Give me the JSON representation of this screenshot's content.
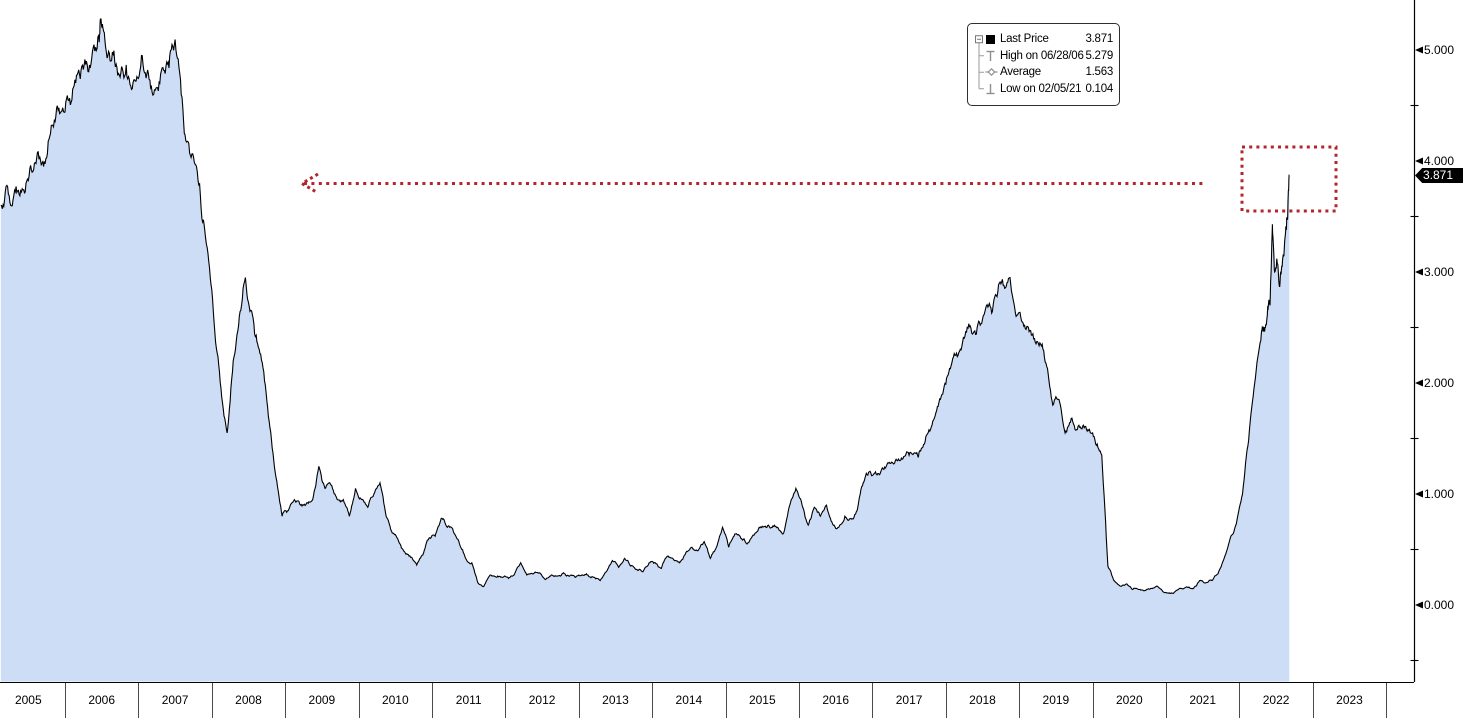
{
  "window": {
    "description": "Bloomberg-style security price area chart, 2005-2023"
  },
  "colors": {
    "area_fill": "#cdddf5",
    "line": "#000000",
    "annotation_red": "#b2262b",
    "axis_text": "#000000",
    "legend_marker_gray": "#8f8f8f",
    "price_tag_bg": "#000000",
    "price_tag_text": "#ffffff"
  },
  "legend": {
    "rows": [
      {
        "id": "last",
        "label": "Last Price",
        "value": "3.871"
      },
      {
        "id": "high",
        "label": "High on 06/28/06",
        "value": "5.279"
      },
      {
        "id": "average",
        "label": "Average",
        "value": "1.563"
      },
      {
        "id": "low",
        "label": "Low on 02/05/21",
        "value": "0.104"
      }
    ]
  },
  "axis_right": {
    "last_price_tag": "3.871",
    "major": [
      {
        "value": 5,
        "label": "5.000"
      },
      {
        "value": 4,
        "label": "4.000"
      },
      {
        "value": 3,
        "label": "3.000"
      },
      {
        "value": 2,
        "label": "2.000"
      },
      {
        "value": 1,
        "label": "1.000"
      },
      {
        "value": 0,
        "label": "0.000"
      }
    ],
    "minor_values": [
      4.5,
      3.5,
      2.5,
      1.5,
      0.5,
      -0.5
    ]
  },
  "axis_bottom": {
    "years": [
      "2005",
      "2006",
      "2007",
      "2008",
      "2009",
      "2010",
      "2011",
      "2012",
      "2013",
      "2014",
      "2015",
      "2016",
      "2017",
      "2018",
      "2019",
      "2020",
      "2021",
      "2022",
      "2023"
    ]
  },
  "chart_data": {
    "type": "area",
    "title": "",
    "xlabel": "",
    "ylabel": "",
    "grid": false,
    "legend_position": "top-right",
    "y_axis": {
      "side": "right",
      "major_tick": 1.0,
      "minor_tick": 0.5,
      "visible_range": [
        -0.69,
        5.45
      ]
    },
    "x_axis": {
      "unit": "year",
      "start_year": 2005,
      "end_year": 2023,
      "data_start": "2005-02",
      "data_end": "2022-09"
    },
    "stats": {
      "last": 3.871,
      "high": {
        "date": "06/28/06",
        "value": 5.279
      },
      "average": 1.563,
      "low": {
        "date": "02/05/21",
        "value": 0.104
      }
    },
    "annotations": [
      {
        "type": "dotted-rectangle",
        "color": "#b2262b",
        "around": "final 2022 price spike near 3.871"
      },
      {
        "type": "dotted-arrow",
        "color": "#b2262b",
        "direction": "left",
        "at_value": 3.8,
        "from": "2021-12",
        "to": "2009-01"
      }
    ],
    "series": [
      {
        "name": "Last Price",
        "points": [
          [
            2005.125,
            3.6
          ],
          [
            2005.208,
            3.78
          ],
          [
            2005.292,
            3.65
          ],
          [
            2005.375,
            3.7
          ],
          [
            2005.458,
            3.72
          ],
          [
            2005.542,
            3.92
          ],
          [
            2005.625,
            4.08
          ],
          [
            2005.708,
            3.95
          ],
          [
            2005.792,
            4.22
          ],
          [
            2005.875,
            4.4
          ],
          [
            2005.958,
            4.45
          ],
          [
            2006.042,
            4.55
          ],
          [
            2006.125,
            4.68
          ],
          [
            2006.208,
            4.74
          ],
          [
            2006.292,
            4.9
          ],
          [
            2006.375,
            4.99
          ],
          [
            2006.458,
            5.13
          ],
          [
            2006.49,
            5.279
          ],
          [
            2006.542,
            5.1
          ],
          [
            2006.625,
            4.9
          ],
          [
            2006.708,
            4.84
          ],
          [
            2006.792,
            4.8
          ],
          [
            2006.875,
            4.74
          ],
          [
            2006.958,
            4.72
          ],
          [
            2007.042,
            4.95
          ],
          [
            2007.125,
            4.82
          ],
          [
            2007.208,
            4.6
          ],
          [
            2007.292,
            4.7
          ],
          [
            2007.375,
            4.85
          ],
          [
            2007.458,
            5.05
          ],
          [
            2007.542,
            4.92
          ],
          [
            2007.625,
            4.25
          ],
          [
            2007.708,
            4.05
          ],
          [
            2007.792,
            3.95
          ],
          [
            2007.875,
            3.45
          ],
          [
            2007.958,
            3.1
          ],
          [
            2008.042,
            2.45
          ],
          [
            2008.125,
            1.95
          ],
          [
            2008.208,
            1.55
          ],
          [
            2008.292,
            2.2
          ],
          [
            2008.375,
            2.6
          ],
          [
            2008.458,
            2.95
          ],
          [
            2008.542,
            2.65
          ],
          [
            2008.625,
            2.35
          ],
          [
            2008.708,
            2.1
          ],
          [
            2008.792,
            1.6
          ],
          [
            2008.875,
            1.15
          ],
          [
            2008.958,
            0.8
          ],
          [
            2009.042,
            0.85
          ],
          [
            2009.125,
            0.95
          ],
          [
            2009.208,
            0.9
          ],
          [
            2009.292,
            0.92
          ],
          [
            2009.375,
            0.95
          ],
          [
            2009.458,
            1.25
          ],
          [
            2009.542,
            1.05
          ],
          [
            2009.625,
            1.08
          ],
          [
            2009.708,
            0.95
          ],
          [
            2009.792,
            0.95
          ],
          [
            2009.875,
            0.8
          ],
          [
            2009.958,
            1.05
          ],
          [
            2010.042,
            0.95
          ],
          [
            2010.125,
            0.88
          ],
          [
            2010.208,
            1.0
          ],
          [
            2010.292,
            1.1
          ],
          [
            2010.375,
            0.8
          ],
          [
            2010.458,
            0.65
          ],
          [
            2010.542,
            0.58
          ],
          [
            2010.625,
            0.48
          ],
          [
            2010.708,
            0.43
          ],
          [
            2010.792,
            0.36
          ],
          [
            2010.875,
            0.45
          ],
          [
            2010.958,
            0.6
          ],
          [
            2011.042,
            0.62
          ],
          [
            2011.125,
            0.78
          ],
          [
            2011.208,
            0.7
          ],
          [
            2011.292,
            0.66
          ],
          [
            2011.375,
            0.55
          ],
          [
            2011.458,
            0.42
          ],
          [
            2011.542,
            0.38
          ],
          [
            2011.625,
            0.2
          ],
          [
            2011.708,
            0.17
          ],
          [
            2011.792,
            0.27
          ],
          [
            2011.875,
            0.25
          ],
          [
            2011.958,
            0.25
          ],
          [
            2012.042,
            0.24
          ],
          [
            2012.125,
            0.28
          ],
          [
            2012.208,
            0.38
          ],
          [
            2012.292,
            0.27
          ],
          [
            2012.375,
            0.28
          ],
          [
            2012.458,
            0.29
          ],
          [
            2012.542,
            0.23
          ],
          [
            2012.625,
            0.27
          ],
          [
            2012.708,
            0.26
          ],
          [
            2012.792,
            0.29
          ],
          [
            2012.875,
            0.26
          ],
          [
            2012.958,
            0.25
          ],
          [
            2013.042,
            0.27
          ],
          [
            2013.125,
            0.27
          ],
          [
            2013.208,
            0.25
          ],
          [
            2013.292,
            0.22
          ],
          [
            2013.375,
            0.3
          ],
          [
            2013.458,
            0.4
          ],
          [
            2013.542,
            0.34
          ],
          [
            2013.625,
            0.42
          ],
          [
            2013.708,
            0.35
          ],
          [
            2013.792,
            0.32
          ],
          [
            2013.875,
            0.3
          ],
          [
            2013.958,
            0.38
          ],
          [
            2014.042,
            0.38
          ],
          [
            2014.125,
            0.33
          ],
          [
            2014.208,
            0.44
          ],
          [
            2014.292,
            0.41
          ],
          [
            2014.375,
            0.38
          ],
          [
            2014.458,
            0.47
          ],
          [
            2014.542,
            0.52
          ],
          [
            2014.625,
            0.49
          ],
          [
            2014.708,
            0.57
          ],
          [
            2014.792,
            0.42
          ],
          [
            2014.875,
            0.52
          ],
          [
            2014.958,
            0.7
          ],
          [
            2015.042,
            0.52
          ],
          [
            2015.125,
            0.64
          ],
          [
            2015.208,
            0.6
          ],
          [
            2015.292,
            0.55
          ],
          [
            2015.375,
            0.63
          ],
          [
            2015.458,
            0.7
          ],
          [
            2015.542,
            0.71
          ],
          [
            2015.625,
            0.7
          ],
          [
            2015.708,
            0.7
          ],
          [
            2015.792,
            0.65
          ],
          [
            2015.875,
            0.9
          ],
          [
            2015.958,
            1.05
          ],
          [
            2016.042,
            0.9
          ],
          [
            2016.125,
            0.72
          ],
          [
            2016.208,
            0.88
          ],
          [
            2016.292,
            0.8
          ],
          [
            2016.375,
            0.9
          ],
          [
            2016.458,
            0.73
          ],
          [
            2016.542,
            0.7
          ],
          [
            2016.625,
            0.8
          ],
          [
            2016.708,
            0.78
          ],
          [
            2016.792,
            0.85
          ],
          [
            2016.875,
            1.1
          ],
          [
            2016.958,
            1.2
          ],
          [
            2017.042,
            1.2
          ],
          [
            2017.125,
            1.22
          ],
          [
            2017.208,
            1.28
          ],
          [
            2017.292,
            1.27
          ],
          [
            2017.375,
            1.3
          ],
          [
            2017.458,
            1.36
          ],
          [
            2017.542,
            1.36
          ],
          [
            2017.625,
            1.33
          ],
          [
            2017.708,
            1.45
          ],
          [
            2017.792,
            1.58
          ],
          [
            2017.875,
            1.75
          ],
          [
            2017.958,
            1.9
          ],
          [
            2018.042,
            2.1
          ],
          [
            2018.125,
            2.25
          ],
          [
            2018.208,
            2.3
          ],
          [
            2018.292,
            2.5
          ],
          [
            2018.375,
            2.45
          ],
          [
            2018.458,
            2.55
          ],
          [
            2018.542,
            2.67
          ],
          [
            2018.625,
            2.63
          ],
          [
            2018.708,
            2.82
          ],
          [
            2018.792,
            2.88
          ],
          [
            2018.875,
            2.95
          ],
          [
            2018.958,
            2.6
          ],
          [
            2019.042,
            2.55
          ],
          [
            2019.125,
            2.5
          ],
          [
            2019.208,
            2.4
          ],
          [
            2019.292,
            2.35
          ],
          [
            2019.375,
            2.15
          ],
          [
            2019.458,
            1.8
          ],
          [
            2019.542,
            1.85
          ],
          [
            2019.625,
            1.55
          ],
          [
            2019.708,
            1.68
          ],
          [
            2019.792,
            1.58
          ],
          [
            2019.875,
            1.62
          ],
          [
            2019.958,
            1.58
          ],
          [
            2020.042,
            1.45
          ],
          [
            2020.125,
            1.35
          ],
          [
            2020.208,
            0.35
          ],
          [
            2020.292,
            0.22
          ],
          [
            2020.375,
            0.17
          ],
          [
            2020.458,
            0.19
          ],
          [
            2020.542,
            0.14
          ],
          [
            2020.625,
            0.14
          ],
          [
            2020.708,
            0.13
          ],
          [
            2020.792,
            0.15
          ],
          [
            2020.875,
            0.17
          ],
          [
            2020.958,
            0.12
          ],
          [
            2021.042,
            0.11
          ],
          [
            2021.1,
            0.104
          ],
          [
            2021.208,
            0.15
          ],
          [
            2021.292,
            0.16
          ],
          [
            2021.375,
            0.15
          ],
          [
            2021.458,
            0.22
          ],
          [
            2021.542,
            0.2
          ],
          [
            2021.625,
            0.22
          ],
          [
            2021.708,
            0.28
          ],
          [
            2021.792,
            0.42
          ],
          [
            2021.875,
            0.6
          ],
          [
            2021.958,
            0.73
          ],
          [
            2022.042,
            1.0
          ],
          [
            2022.125,
            1.48
          ],
          [
            2022.208,
            2.0
          ],
          [
            2022.292,
            2.38
          ],
          [
            2022.333,
            2.5
          ],
          [
            2022.375,
            2.58
          ],
          [
            2022.417,
            2.7
          ],
          [
            2022.449,
            3.43
          ],
          [
            2022.48,
            3.0
          ],
          [
            2022.51,
            3.12
          ],
          [
            2022.545,
            2.87
          ],
          [
            2022.58,
            3.05
          ],
          [
            2022.61,
            3.2
          ],
          [
            2022.64,
            3.38
          ],
          [
            2022.66,
            3.55
          ],
          [
            2022.68,
            3.871
          ]
        ]
      }
    ]
  }
}
